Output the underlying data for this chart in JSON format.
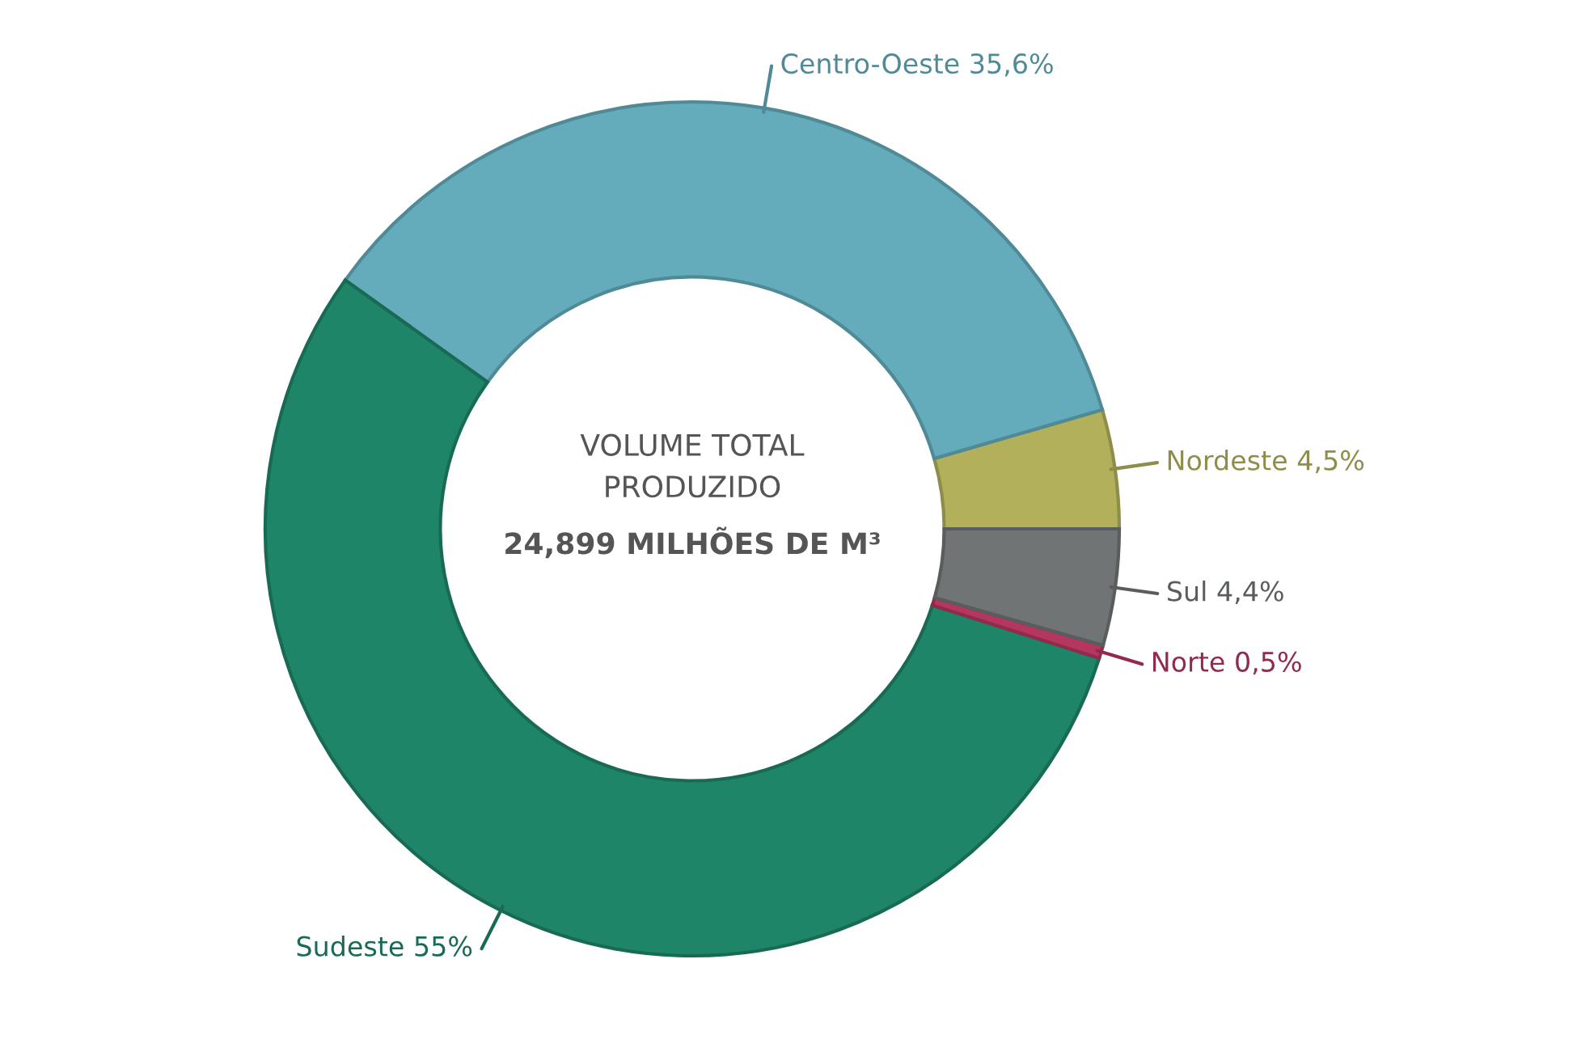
{
  "chart_data": {
    "type": "donut",
    "categories": [
      "Nordeste",
      "Centro-Oeste",
      "Sudeste",
      "Norte",
      "Sul"
    ],
    "values": [
      4.5,
      35.6,
      55,
      0.5,
      4.4
    ],
    "value_labels": [
      "4,5%",
      "35,6%",
      "55%",
      "0,5%",
      "4,4%"
    ],
    "colors": [
      "#b2b05b",
      "#64acbc",
      "#1e8569",
      "#b5365f",
      "#717474"
    ],
    "annotations": [
      "VOLUME TOTAL\nPRODUZIDO",
      "24,899 MILHÕES DE M³"
    ]
  }
}
